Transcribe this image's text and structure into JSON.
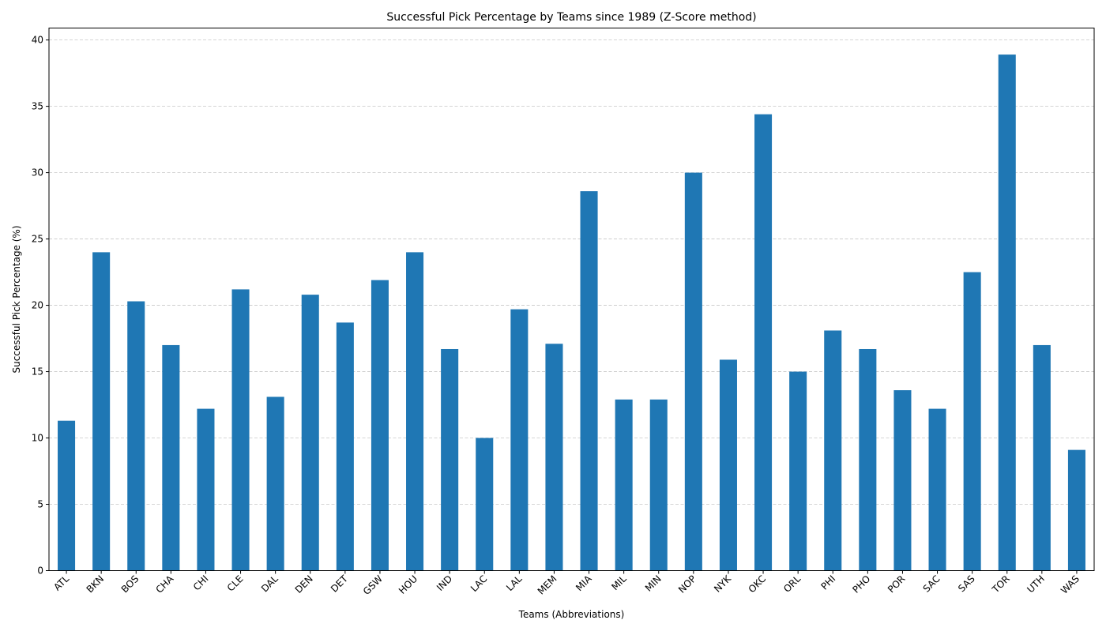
{
  "chart_data": {
    "type": "bar",
    "title": "Successful Pick Percentage by Teams since 1989 (Z-Score method)",
    "xlabel": "Teams (Abbreviations)",
    "ylabel": "Successful Pick Percentage (%)",
    "ylim": [
      0,
      40.9
    ],
    "yticks": [
      0,
      5,
      10,
      15,
      20,
      25,
      30,
      35,
      40
    ],
    "grid": "y-dashed",
    "bar_color": "#1f77b4",
    "categories": [
      "ATL",
      "BKN",
      "BOS",
      "CHA",
      "CHI",
      "CLE",
      "DAL",
      "DEN",
      "DET",
      "GSW",
      "HOU",
      "IND",
      "LAC",
      "LAL",
      "MEM",
      "MIA",
      "MIL",
      "MIN",
      "NOP",
      "NYK",
      "OKC",
      "ORL",
      "PHI",
      "PHO",
      "POR",
      "SAC",
      "SAS",
      "TOR",
      "UTH",
      "WAS"
    ],
    "values": [
      11.3,
      24.0,
      20.3,
      17.0,
      12.2,
      21.2,
      13.1,
      20.8,
      18.7,
      21.9,
      24.0,
      16.7,
      10.0,
      19.7,
      17.1,
      28.6,
      12.9,
      12.9,
      30.0,
      15.9,
      34.4,
      15.0,
      18.1,
      16.7,
      13.6,
      12.2,
      22.5,
      38.9,
      17.0,
      9.1
    ]
  }
}
